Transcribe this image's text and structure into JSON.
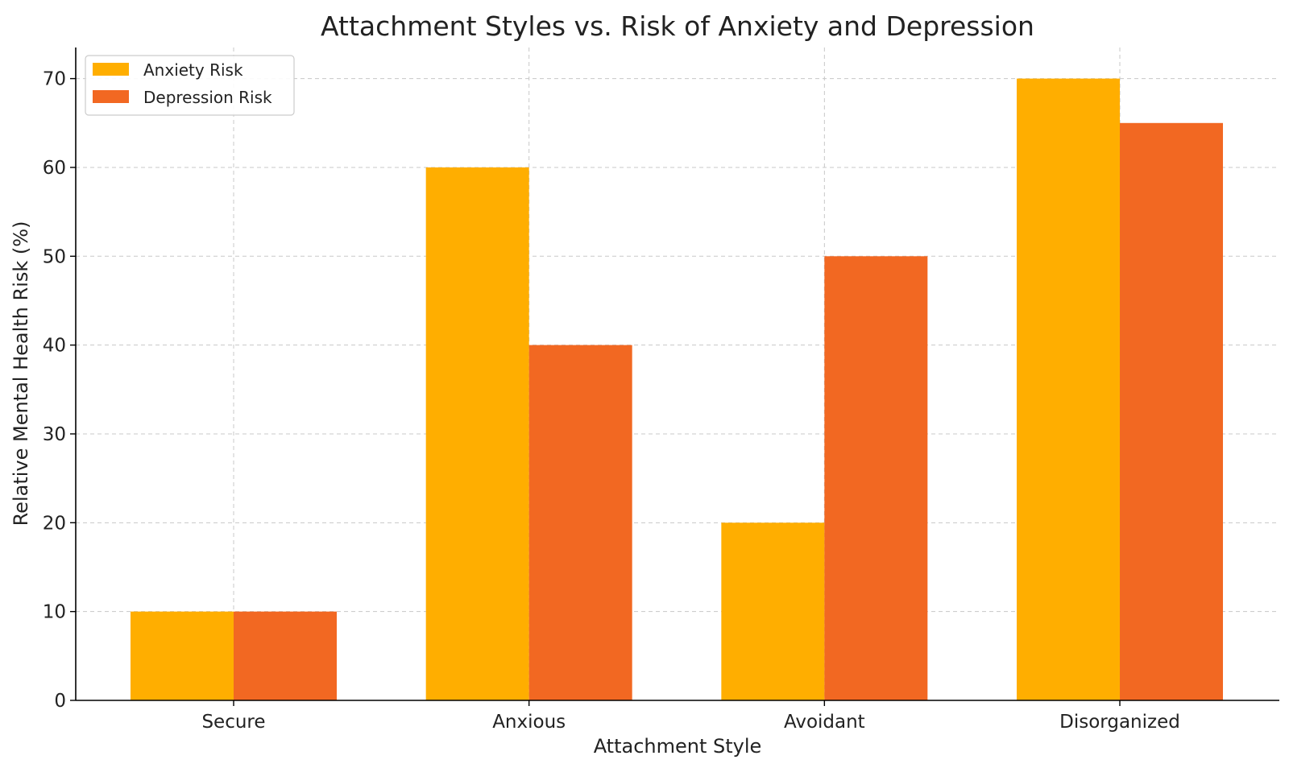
{
  "chart_data": {
    "type": "bar",
    "title": "Attachment Styles vs. Risk of Anxiety and Depression",
    "xlabel": "Attachment Style",
    "ylabel": "Relative Mental Health Risk (%)",
    "categories": [
      "Secure",
      "Anxious",
      "Avoidant",
      "Disorganized"
    ],
    "series": [
      {
        "name": "Anxiety Risk",
        "color": "#FFAE00",
        "values": [
          10,
          60,
          20,
          70
        ]
      },
      {
        "name": "Depression Risk",
        "color": "#F26822",
        "values": [
          10,
          40,
          50,
          65
        ]
      }
    ],
    "ylim": [
      0,
      73.5
    ],
    "yticks": [
      0,
      10,
      20,
      30,
      40,
      50,
      60,
      70
    ],
    "grid": true,
    "legend_position": "top-left"
  }
}
